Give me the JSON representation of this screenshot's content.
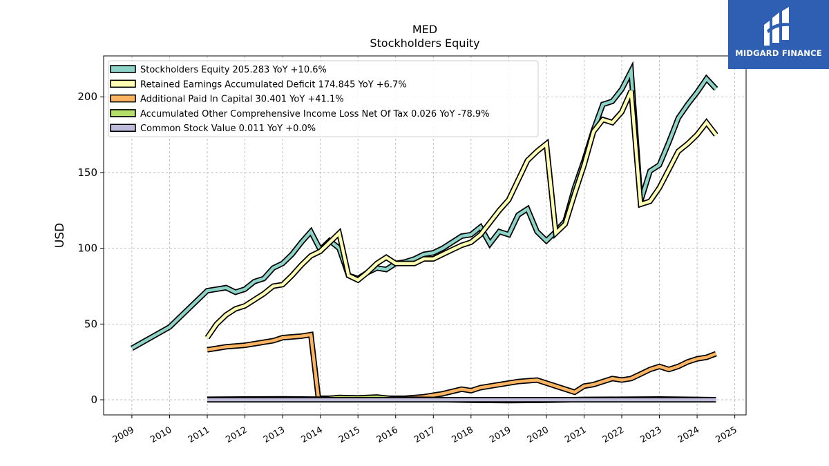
{
  "title": "MED",
  "subtitle": "Stockholders  Equity",
  "logo_text": "MIDGARD FINANCE",
  "colors": {
    "logo_bg": "#2f5fb3"
  },
  "chart_data": {
    "type": "line",
    "ylabel": "USD",
    "xlabel": "",
    "ylim": [
      -10,
      227
    ],
    "xlim": [
      2008.25,
      2025.3
    ],
    "grid": true,
    "legend_position": "top-left",
    "x_ticks": [
      "2009",
      "2010",
      "2011",
      "2012",
      "2013",
      "2014",
      "2015",
      "2016",
      "2017",
      "2018",
      "2019",
      "2020",
      "2021",
      "2022",
      "2023",
      "2024",
      "2025"
    ],
    "y_ticks": [
      0,
      50,
      100,
      150,
      200
    ],
    "series": [
      {
        "name": "Stockholders Equity",
        "legend": "Stockholders Equity  205.283 YoY +10.6%",
        "color": "#8dd3c7",
        "x": [
          2009.0,
          2010.0,
          2011.0,
          2011.5,
          2011.75,
          2012.0,
          2012.25,
          2012.5,
          2012.75,
          2013.0,
          2013.25,
          2013.5,
          2013.75,
          2014.0,
          2014.25,
          2014.5,
          2014.75,
          2015.0,
          2015.25,
          2015.5,
          2015.75,
          2016.0,
          2016.25,
          2016.5,
          2016.75,
          2017.0,
          2017.25,
          2017.5,
          2017.75,
          2018.0,
          2018.25,
          2018.5,
          2018.75,
          2019.0,
          2019.25,
          2019.5,
          2019.75,
          2020.0,
          2020.25,
          2020.5,
          2020.75,
          2021.0,
          2021.25,
          2021.5,
          2021.75,
          2022.0,
          2022.25,
          2022.5,
          2022.75,
          2023.0,
          2023.25,
          2023.5,
          2023.75,
          2024.0,
          2024.25,
          2024.5
        ],
        "y": [
          34,
          48,
          72,
          74,
          71,
          73,
          78,
          80,
          87,
          90,
          96,
          104,
          111,
          99,
          105,
          100,
          82,
          80,
          84,
          87,
          86,
          90,
          91,
          93,
          96,
          97,
          100,
          104,
          108,
          109,
          114,
          103,
          111,
          109,
          122,
          126,
          111,
          105,
          111,
          118,
          140,
          158,
          178,
          195,
          197,
          205,
          217,
          131,
          151,
          155,
          170,
          186,
          195,
          203,
          212,
          205.283
        ]
      },
      {
        "name": "Retained Earnings Accumulated Deficit",
        "legend": "Retained Earnings Accumulated Deficit  174.845 YoY +6.7%",
        "color": "#ffffb3",
        "x": [
          2011.0,
          2011.25,
          2011.5,
          2011.75,
          2012.0,
          2012.25,
          2012.5,
          2012.75,
          2013.0,
          2013.25,
          2013.5,
          2013.75,
          2014.0,
          2014.25,
          2014.5,
          2014.75,
          2015.0,
          2015.25,
          2015.5,
          2015.75,
          2016.0,
          2016.25,
          2016.5,
          2016.75,
          2017.0,
          2017.25,
          2017.5,
          2017.75,
          2018.0,
          2018.25,
          2018.5,
          2018.75,
          2019.0,
          2019.25,
          2019.5,
          2019.75,
          2020.0,
          2020.25,
          2020.5,
          2020.75,
          2021.0,
          2021.25,
          2021.5,
          2021.75,
          2022.0,
          2022.25,
          2022.5,
          2022.75,
          2023.0,
          2023.25,
          2023.5,
          2023.75,
          2024.0,
          2024.25,
          2024.5
        ],
        "y": [
          41,
          50,
          56,
          60,
          62,
          66,
          70,
          75,
          76,
          82,
          89,
          95,
          98,
          104,
          110,
          82,
          79,
          84,
          90,
          94,
          90,
          90,
          90,
          93,
          93,
          96,
          99,
          102,
          104,
          109,
          117,
          125,
          132,
          145,
          158,
          164,
          169,
          110,
          116,
          136,
          155,
          177,
          185,
          183,
          190,
          204,
          129,
          131,
          140,
          152,
          164,
          169,
          175,
          183,
          174.845
        ]
      },
      {
        "name": "Additional Paid In Capital",
        "legend": "Additional Paid In Capital  30.401 YoY +41.1%",
        "color": "#fdb462",
        "x": [
          2011.0,
          2011.5,
          2012.0,
          2012.25,
          2012.5,
          2012.75,
          2013.0,
          2013.5,
          2013.75,
          2013.95,
          2014.25,
          2014.75,
          2015.25,
          2015.75,
          2016.25,
          2016.75,
          2017.25,
          2017.75,
          2018.0,
          2018.25,
          2018.75,
          2019.25,
          2019.75,
          2020.25,
          2020.75,
          2021.0,
          2021.25,
          2021.5,
          2021.75,
          2022.0,
          2022.25,
          2022.5,
          2022.75,
          2023.0,
          2023.25,
          2023.5,
          2023.75,
          2024.0,
          2024.25,
          2024.5
        ],
        "y": [
          33,
          35,
          36,
          37,
          38,
          39,
          41,
          42,
          43,
          1,
          1,
          1,
          1,
          1,
          1,
          2,
          4,
          7,
          6,
          8,
          10,
          12,
          13,
          9,
          5,
          9,
          10,
          12,
          14,
          13,
          14,
          17,
          20,
          22,
          20,
          22,
          25,
          27,
          28,
          30.401
        ]
      },
      {
        "name": "Accumulated Other Comprehensive Income Loss Net Of Tax",
        "legend": "Accumulated Other Comprehensive Income Loss Net Of Tax  0.026 YoY -78.9%",
        "color": "#b3de69",
        "x": [
          2011.0,
          2012.0,
          2013.0,
          2014.0,
          2014.5,
          2015.0,
          2015.5,
          2016.0,
          2017.0,
          2018.0,
          2019.0,
          2020.0,
          2021.0,
          2022.0,
          2023.0,
          2024.0,
          2024.5
        ],
        "y": [
          0.3,
          0.5,
          0.6,
          0.4,
          1.5,
          1.2,
          1.8,
          0.5,
          0.2,
          -0.3,
          -0.5,
          -0.3,
          0.2,
          0.3,
          0.5,
          0.2,
          0.026
        ]
      },
      {
        "name": "Common Stock Value",
        "legend": "Common Stock Value  0.011 YoY +0.0%",
        "color": "#bebada",
        "x": [
          2011.0,
          2012.0,
          2013.0,
          2014.0,
          2015.0,
          2016.0,
          2017.0,
          2018.0,
          2019.0,
          2020.0,
          2021.0,
          2022.0,
          2023.0,
          2024.0,
          2024.5
        ],
        "y": [
          0.011,
          0.011,
          0.011,
          0.011,
          0.011,
          0.011,
          0.011,
          0.011,
          0.011,
          0.011,
          0.011,
          0.011,
          0.011,
          0.011,
          0.011
        ]
      }
    ]
  }
}
